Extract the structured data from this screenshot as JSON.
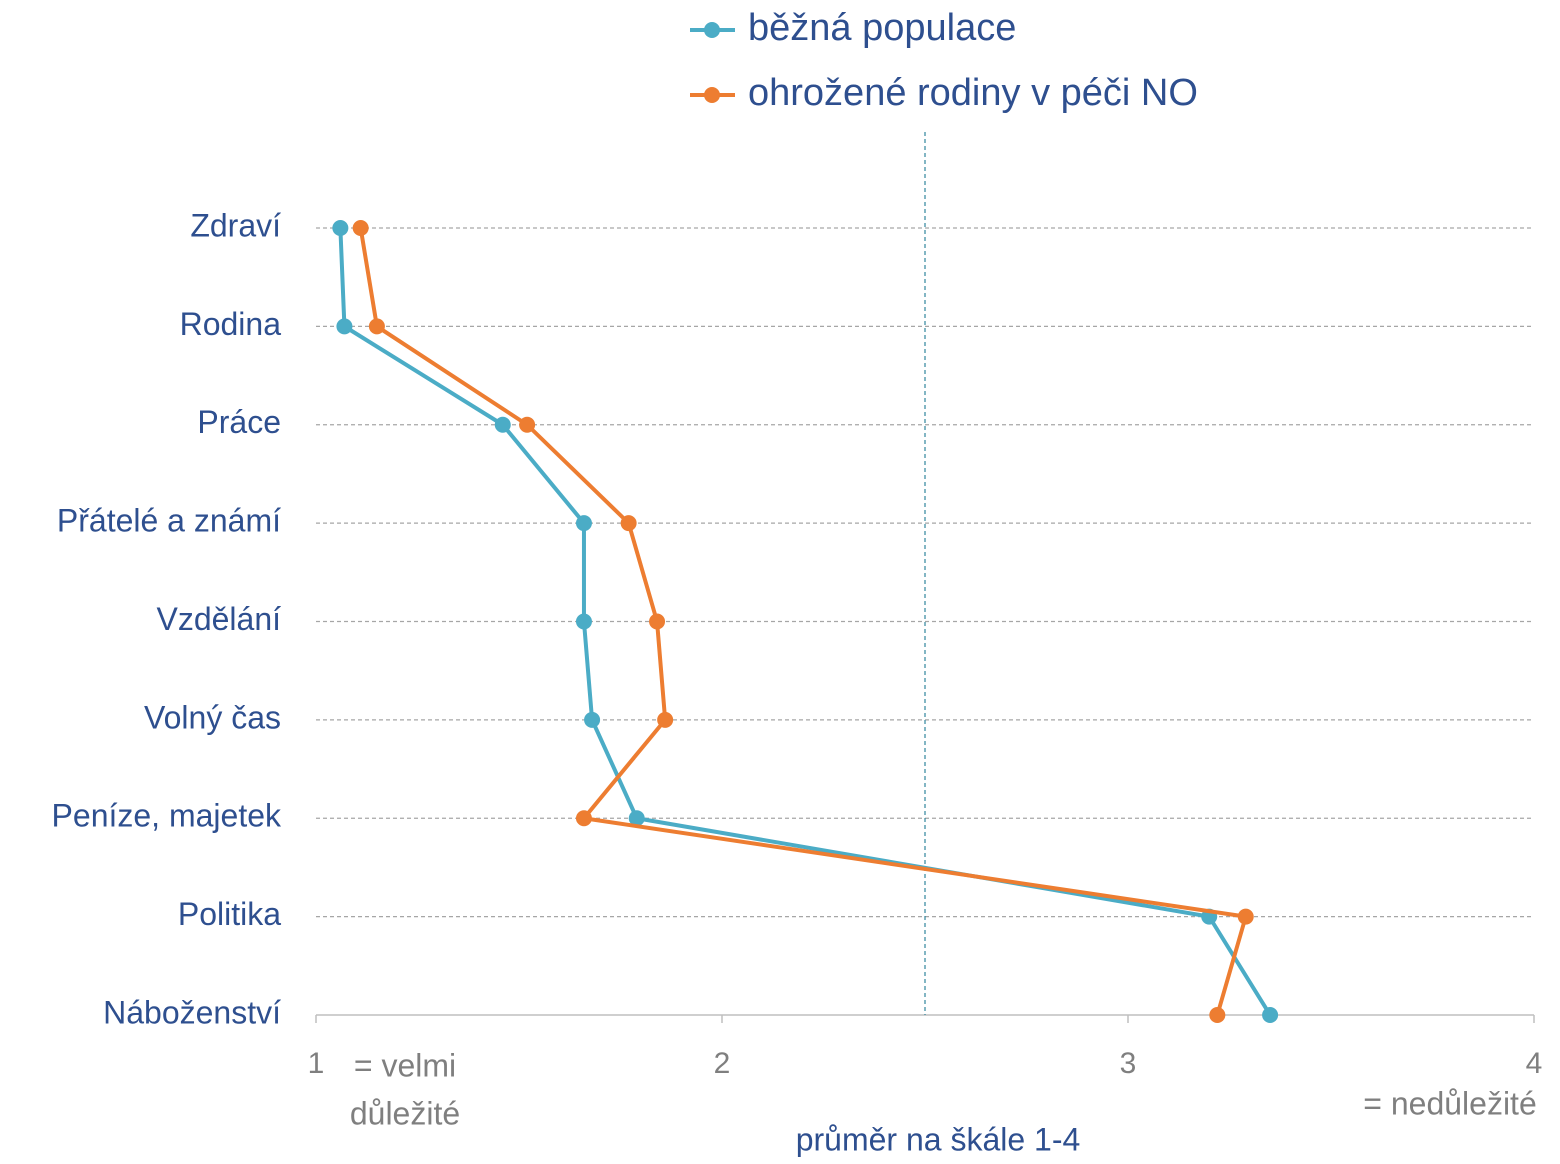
{
  "chart_data": {
    "type": "line",
    "orientation": "horizontal",
    "categories": [
      "Zdraví",
      "Rodina",
      "Práce",
      "Přátelé a známí",
      "Vzdělání",
      "Volný čas",
      "Peníze, majetek",
      "Politika",
      "Náboženství"
    ],
    "series": [
      {
        "name": "běžná populace",
        "color": "#4bacc6",
        "values": [
          1.06,
          1.07,
          1.46,
          1.66,
          1.66,
          1.68,
          1.79,
          3.2,
          3.35
        ]
      },
      {
        "name": "ohrožené rodiny v péči NO",
        "color": "#ed7d31",
        "values": [
          1.11,
          1.15,
          1.52,
          1.77,
          1.84,
          1.86,
          1.66,
          3.29,
          3.22
        ]
      }
    ],
    "xlim": [
      1,
      4
    ],
    "xticks": [
      1,
      2,
      3,
      4
    ],
    "xlabel": "průměr na škále 1-4",
    "reference_line": 2.5,
    "low_label": [
      "= velmi",
      "důležité"
    ],
    "high_label": "= nedůležité",
    "grid": true,
    "legend": "top"
  }
}
